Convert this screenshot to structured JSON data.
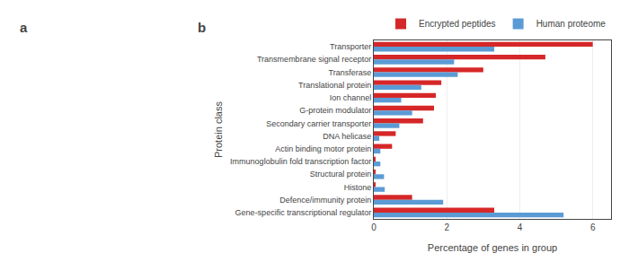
{
  "chart_data": {
    "type": "bar",
    "orientation": "horizontal",
    "categories": [
      "Transporter",
      "Transmembrane signal receptor",
      "Transferase",
      "Translational protein",
      "Ion channel",
      "G-protein modulator",
      "Secondary carrier transporter",
      "DNA helicase",
      "Actin binding motor protein",
      "Immunoglobulin fold transcription factor",
      "Structural protein",
      "Histone",
      "Defence/immunity protein",
      "Gene-specific transcriptional regulator"
    ],
    "series": [
      {
        "name": "Encrypted peptides",
        "color": "#d62728",
        "values": [
          6.0,
          4.7,
          3.0,
          1.85,
          1.7,
          1.65,
          1.35,
          0.6,
          0.5,
          0.05,
          0.05,
          0.05,
          1.05,
          3.3
        ]
      },
      {
        "name": "Human proteome",
        "color": "#5b9bd5",
        "values": [
          3.3,
          2.2,
          2.3,
          1.3,
          0.75,
          1.05,
          0.7,
          0.15,
          0.18,
          0.18,
          0.28,
          0.3,
          1.9,
          5.2
        ]
      }
    ],
    "xlabel": "Percentage of genes in group",
    "ylabel": "Protein class",
    "xlim": [
      0,
      6.5
    ],
    "xticks": [
      0,
      2,
      4,
      6
    ],
    "grid": true,
    "legend": "upper right",
    "annotations": [
      "a",
      "b"
    ]
  }
}
